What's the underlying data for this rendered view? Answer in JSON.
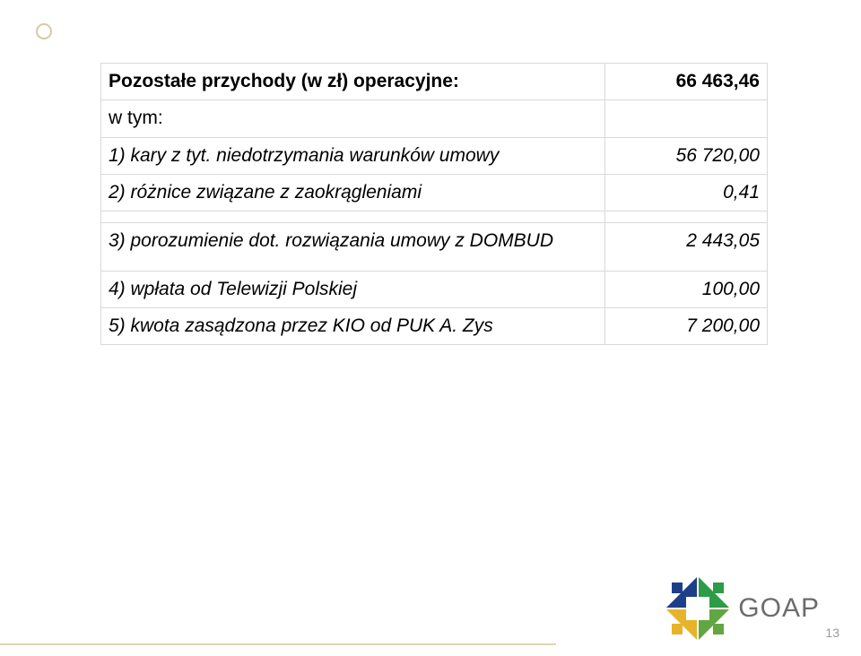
{
  "decor": {
    "ring_color": "#d8c9a0",
    "footline_color": "#e0d4b1"
  },
  "table": {
    "border_color": "#d9d9d9",
    "rows": [
      {
        "label": "Pozostałe przychody (w zł) operacyjne:",
        "value": "66 463,46",
        "bold": true
      },
      {
        "label": "w tym:",
        "value": ""
      },
      {
        "label": "1) kary z tyt. niedotrzymania warunków umowy",
        "value": "56 720,00",
        "italic": true
      },
      {
        "label": "2) różnice związane z zaokrągleniami",
        "value": "0,41",
        "italic": true
      },
      {
        "label": "3) porozumienie dot. rozwiązania umowy z DOMBUD",
        "value": "2 443,05",
        "italic": true,
        "tall": true
      },
      {
        "label": "4) wpłata od Telewizji Polskiej",
        "value": "100,00",
        "italic": true
      },
      {
        "label": "5) kwota zasądzona przez KIO od PUK A. Zys",
        "value": "7 200,00",
        "italic": true
      }
    ]
  },
  "logo": {
    "text": "GOAP",
    "colors": {
      "tl": "#1f3e8a",
      "tr": "#2e9b47",
      "bl": "#e7b32a",
      "br": "#62a641"
    },
    "text_color": "#6c6c6c"
  },
  "page_number": "13"
}
